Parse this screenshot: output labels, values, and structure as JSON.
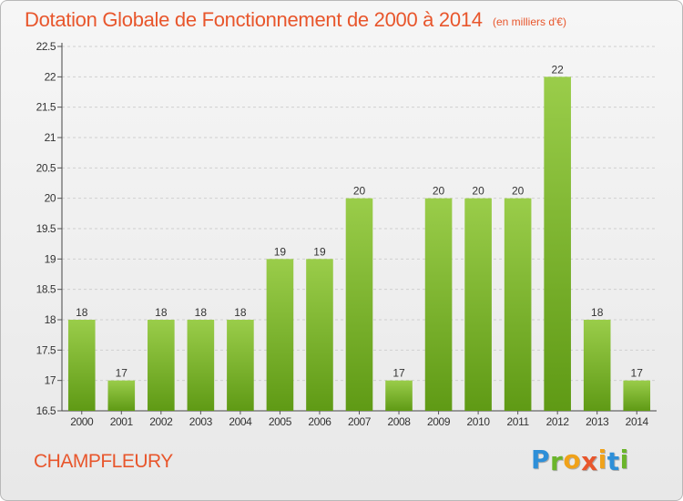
{
  "title": "Dotation Globale de Fonctionnement de 2000 à 2014",
  "subtitle": "(en milliers d'€)",
  "commune": "CHAMPFLEURY",
  "logo": {
    "letters": [
      "P",
      "r",
      "o",
      "x",
      "i",
      "t",
      "i"
    ],
    "colors": [
      "#2e8fd8",
      "#6bb52b",
      "#f0a21a",
      "#e8562c",
      "#f0a21a",
      "#2e8fd8",
      "#6bb52b"
    ]
  },
  "colors": {
    "accent": "#e8562c",
    "bar_top": "#9acd4a",
    "bar_bottom": "#5f9a15"
  },
  "chart_data": {
    "type": "bar",
    "categories": [
      "2000",
      "2001",
      "2002",
      "2003",
      "2004",
      "2005",
      "2006",
      "2007",
      "2008",
      "2009",
      "2010",
      "2011",
      "2012",
      "2013",
      "2014"
    ],
    "values": [
      18,
      17,
      18,
      18,
      18,
      19,
      19,
      20,
      17,
      20,
      20,
      20,
      22,
      18,
      17
    ],
    "data_labels": [
      "18",
      "17",
      "18",
      "18",
      "18",
      "19",
      "19",
      "20",
      "17",
      "20",
      "20",
      "20",
      "22",
      "18",
      "17"
    ],
    "title": "Dotation Globale de Fonctionnement de 2000 à 2014",
    "xlabel": "",
    "ylabel": "",
    "ylim": [
      16.5,
      22.5
    ],
    "yticks": [
      16.5,
      17,
      17.5,
      18,
      18.5,
      19,
      19.5,
      20,
      20.5,
      21,
      21.5,
      22,
      22.5
    ],
    "ytick_labels": [
      "16.5",
      "17",
      "17.5",
      "18",
      "18.5",
      "19",
      "19.5",
      "20",
      "20.5",
      "21",
      "21.5",
      "22",
      "22.5"
    ],
    "grid": true,
    "legend": "none"
  }
}
